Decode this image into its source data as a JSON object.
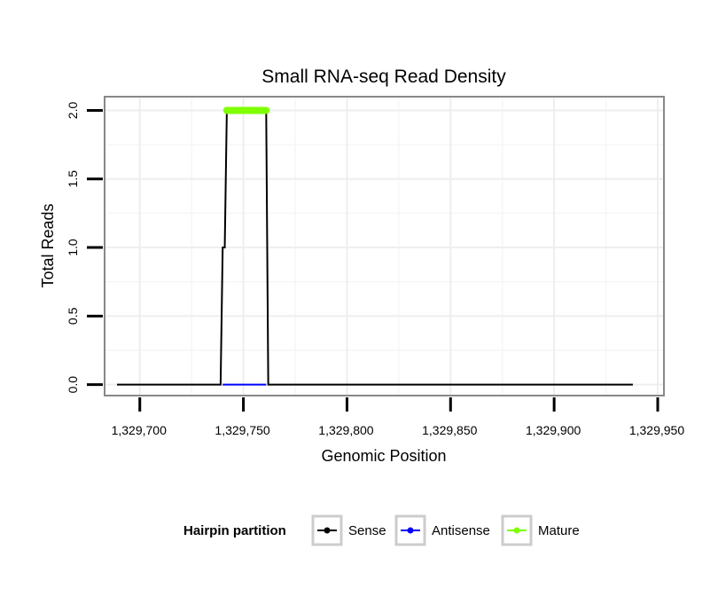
{
  "chart_data": {
    "type": "line",
    "title": "Small RNA-seq Read Density",
    "xlabel": "Genomic Position",
    "ylabel": "Total Reads",
    "xlim": [
      1329683,
      1329953
    ],
    "ylim": [
      -0.08,
      2.1
    ],
    "x_ticks": [
      1329700,
      1329750,
      1329800,
      1329850,
      1329900,
      1329950
    ],
    "x_tick_labels": [
      "1,329,700",
      "1,329,750",
      "1,329,800",
      "1,329,850",
      "1,329,900",
      "1,329,950"
    ],
    "y_ticks": [
      0,
      0.5,
      1,
      1.5,
      2
    ],
    "y_tick_labels": [
      "0.0",
      "0.5",
      "1.0",
      "1.5",
      "2.0"
    ],
    "grid": true,
    "legend_position": "bottom",
    "legend_title": "Hairpin partition",
    "series": [
      {
        "name": "Sense",
        "color": "#000000",
        "x": [
          1329689,
          1329739,
          1329740,
          1329741,
          1329742,
          1329761,
          1329762,
          1329938
        ],
        "y": [
          0,
          0,
          1,
          1,
          2,
          2,
          0,
          0
        ]
      },
      {
        "name": "Antisense",
        "color": "#0000ff",
        "x": [
          1329740,
          1329761
        ],
        "y": [
          0,
          0
        ]
      },
      {
        "name": "Mature",
        "color": "#7fff00",
        "x": [
          1329742,
          1329761
        ],
        "y": [
          2,
          2
        ]
      }
    ]
  }
}
